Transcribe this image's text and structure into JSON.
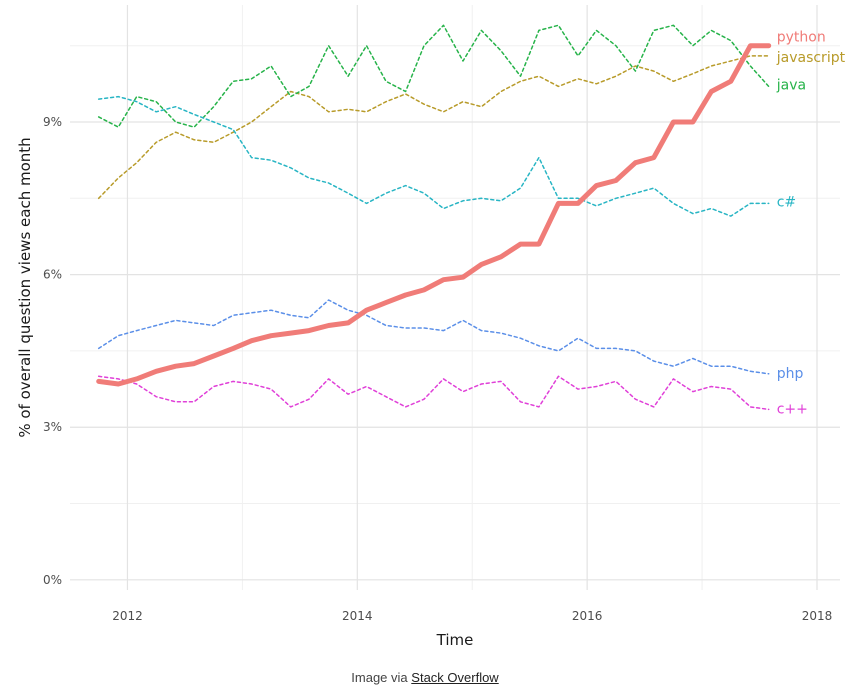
{
  "chart_data": {
    "type": "line",
    "xlabel": "Time",
    "ylabel": "% of overall question views each month",
    "xlim": [
      2011.5,
      2018.2
    ],
    "ylim": [
      -0.2,
      11.3
    ],
    "x_ticks": [
      2012,
      2014,
      2016,
      2018
    ],
    "x_tick_labels": [
      "2012",
      "2014",
      "2016",
      "2018"
    ],
    "y_ticks": [
      0,
      3,
      6,
      9
    ],
    "y_tick_labels": [
      "0%",
      "3%",
      "6%",
      "9%"
    ],
    "grid": true,
    "legend": "direct labels at line ends",
    "x": [
      2011.75,
      2011.92,
      2012.08,
      2012.25,
      2012.42,
      2012.58,
      2012.75,
      2012.92,
      2013.08,
      2013.25,
      2013.42,
      2013.58,
      2013.75,
      2013.92,
      2014.08,
      2014.25,
      2014.42,
      2014.58,
      2014.75,
      2014.92,
      2015.08,
      2015.25,
      2015.42,
      2015.58,
      2015.75,
      2015.92,
      2016.08,
      2016.25,
      2016.42,
      2016.58,
      2016.75,
      2016.92,
      2017.08,
      2017.25,
      2017.42,
      2017.58
    ],
    "series": [
      {
        "name": "python",
        "color": "#F07C78",
        "style": "solid",
        "values": [
          3.9,
          3.85,
          3.95,
          4.1,
          4.2,
          4.25,
          4.4,
          4.55,
          4.7,
          4.8,
          4.85,
          4.9,
          5.0,
          5.05,
          5.3,
          5.45,
          5.6,
          5.7,
          5.9,
          5.95,
          6.2,
          6.35,
          6.6,
          6.6,
          7.4,
          7.4,
          7.75,
          7.85,
          8.2,
          8.3,
          9.0,
          9.0,
          9.6,
          9.8,
          10.5,
          10.5
        ]
      },
      {
        "name": "javascript",
        "color": "#B89B2A",
        "style": "dotted",
        "values": [
          7.5,
          7.9,
          8.2,
          8.6,
          8.8,
          8.65,
          8.6,
          8.8,
          9.0,
          9.3,
          9.6,
          9.5,
          9.2,
          9.25,
          9.2,
          9.4,
          9.55,
          9.35,
          9.2,
          9.4,
          9.3,
          9.6,
          9.8,
          9.9,
          9.7,
          9.85,
          9.75,
          9.9,
          10.1,
          10.0,
          9.8,
          9.95,
          10.1,
          10.2,
          10.3,
          10.3
        ]
      },
      {
        "name": "java",
        "color": "#27B34A",
        "style": "dotted",
        "values": [
          9.1,
          8.9,
          9.5,
          9.4,
          9.0,
          8.9,
          9.3,
          9.8,
          9.85,
          10.1,
          9.5,
          9.7,
          10.5,
          9.9,
          10.5,
          9.8,
          9.6,
          10.5,
          10.9,
          10.2,
          10.8,
          10.4,
          9.9,
          10.8,
          10.9,
          10.3,
          10.8,
          10.5,
          10.0,
          10.8,
          10.9,
          10.5,
          10.8,
          10.6,
          10.1,
          9.7
        ]
      },
      {
        "name": "c#",
        "color": "#28B5C4",
        "style": "dotted",
        "values": [
          9.45,
          9.5,
          9.4,
          9.2,
          9.3,
          9.15,
          9.0,
          8.85,
          8.3,
          8.25,
          8.1,
          7.9,
          7.8,
          7.6,
          7.4,
          7.6,
          7.75,
          7.6,
          7.3,
          7.45,
          7.5,
          7.45,
          7.7,
          8.3,
          7.5,
          7.5,
          7.35,
          7.5,
          7.6,
          7.7,
          7.4,
          7.2,
          7.3,
          7.15,
          7.4,
          7.4
        ]
      },
      {
        "name": "php",
        "color": "#5B8FE8",
        "style": "dotted",
        "values": [
          4.55,
          4.8,
          4.9,
          5.0,
          5.1,
          5.05,
          5.0,
          5.2,
          5.25,
          5.3,
          5.2,
          5.15,
          5.5,
          5.3,
          5.2,
          5.0,
          4.95,
          4.95,
          4.9,
          5.1,
          4.9,
          4.85,
          4.75,
          4.6,
          4.5,
          4.75,
          4.55,
          4.55,
          4.5,
          4.3,
          4.2,
          4.35,
          4.2,
          4.2,
          4.1,
          4.05
        ]
      },
      {
        "name": "c++",
        "color": "#E040D8",
        "style": "dotted",
        "values": [
          4.0,
          3.95,
          3.85,
          3.6,
          3.5,
          3.5,
          3.8,
          3.9,
          3.85,
          3.75,
          3.4,
          3.55,
          3.95,
          3.65,
          3.8,
          3.6,
          3.4,
          3.55,
          3.95,
          3.7,
          3.85,
          3.9,
          3.5,
          3.4,
          4.0,
          3.75,
          3.8,
          3.9,
          3.55,
          3.4,
          3.95,
          3.7,
          3.8,
          3.75,
          3.4,
          3.35
        ]
      }
    ]
  },
  "caption": {
    "prefix": "Image via",
    "link_text": "Stack Overflow"
  }
}
